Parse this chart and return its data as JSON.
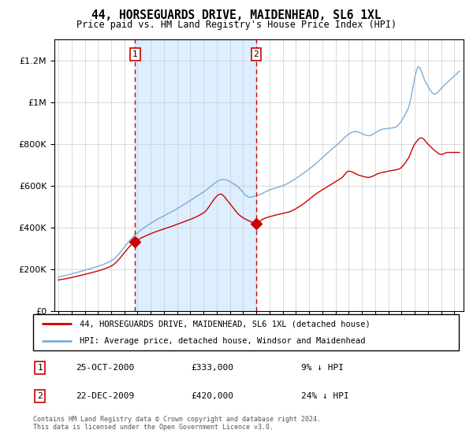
{
  "title": "44, HORSEGUARDS DRIVE, MAIDENHEAD, SL6 1XL",
  "subtitle": "Price paid vs. HM Land Registry's House Price Index (HPI)",
  "legend_line1": "44, HORSEGUARDS DRIVE, MAIDENHEAD, SL6 1XL (detached house)",
  "legend_line2": "HPI: Average price, detached house, Windsor and Maidenhead",
  "transaction1_date": "25-OCT-2000",
  "transaction1_price": 333000,
  "transaction1_hpi_diff": "9% ↓ HPI",
  "transaction2_date": "22-DEC-2009",
  "transaction2_price": 420000,
  "transaction2_hpi_diff": "24% ↓ HPI",
  "footer": "Contains HM Land Registry data © Crown copyright and database right 2024.\nThis data is licensed under the Open Government Licence v3.0.",
  "red_line_color": "#cc0000",
  "blue_line_color": "#7aaddb",
  "shade_color": "#ddeeff",
  "marker_color": "#cc0000",
  "vline_color": "#cc0000",
  "ylim": [
    0,
    1300000
  ],
  "yticks": [
    0,
    200000,
    400000,
    600000,
    800000,
    1000000,
    1200000
  ],
  "transaction1_x": 2000.82,
  "transaction2_x": 2009.98
}
